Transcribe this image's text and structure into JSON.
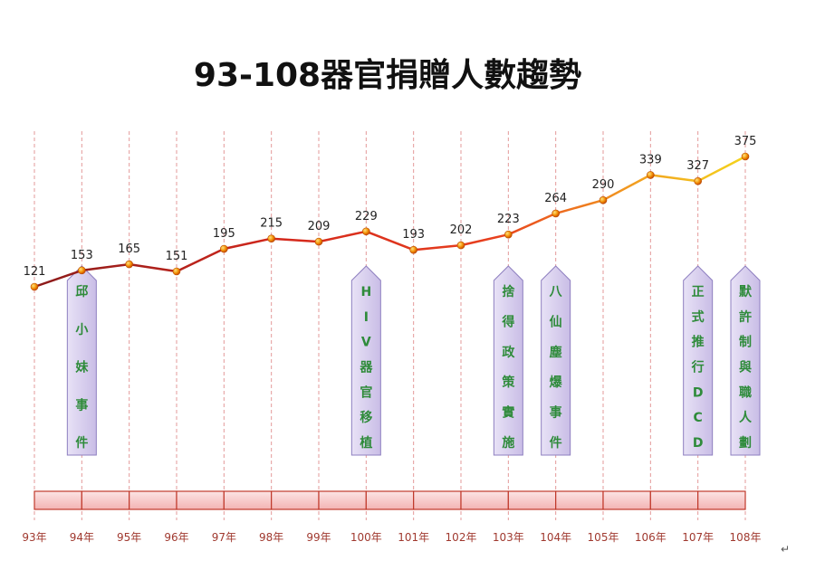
{
  "chart_data": {
    "type": "line",
    "title": "93-108器官捐贈人數趨勢",
    "categories": [
      "93年",
      "94年",
      "95年",
      "96年",
      "97年",
      "98年",
      "99年",
      "100年",
      "101年",
      "102年",
      "103年",
      "104年",
      "105年",
      "106年",
      "107年",
      "108年"
    ],
    "values": [
      121,
      153,
      165,
      151,
      195,
      215,
      209,
      229,
      193,
      202,
      223,
      264,
      290,
      339,
      327,
      375
    ],
    "ylim": [
      0,
      500
    ],
    "grid": "vertical-dashed",
    "colors": {
      "line_low": "#8b1a1a",
      "line_mid": "#e03a1e",
      "line_high": "#f2cc1c",
      "point": "#e8a400",
      "grid": "#e39a9a",
      "band_fill": "#f7c6c6",
      "band_stroke": "#c0392b",
      "note_fill": "#d9d0ee",
      "note_text": "#2e8b3a"
    },
    "annotations": [
      {
        "category": "94年",
        "lines": [
          "件",
          "事",
          "妹",
          "小",
          "邱"
        ]
      },
      {
        "category": "100年",
        "lines": [
          "植",
          "移",
          "官",
          "器",
          "V",
          "I",
          "H"
        ]
      },
      {
        "category": "103年",
        "lines": [
          "施",
          "實",
          "策",
          "政",
          "得",
          "捨"
        ]
      },
      {
        "category": "104年",
        "lines": [
          "件",
          "事",
          "爆",
          "塵",
          "仙",
          "八"
        ]
      },
      {
        "category": "107年",
        "lines": [
          "D",
          "C",
          "D",
          "行",
          "推",
          "式",
          "正"
        ]
      },
      {
        "category": "108年",
        "lines": [
          "劃",
          "人",
          "職",
          "與",
          "制",
          "許",
          "默"
        ]
      }
    ]
  },
  "page_mark": "↵"
}
